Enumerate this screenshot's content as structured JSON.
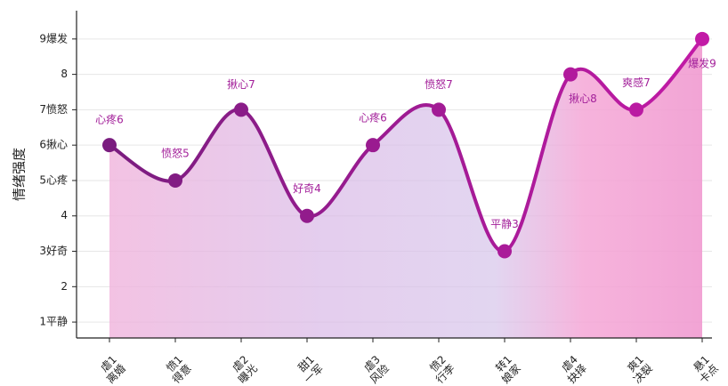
{
  "chart_data": {
    "type": "line",
    "y_label": "情绪强度",
    "categories": [
      "虐1\n离婚",
      "愤1\n得意",
      "虐2\n曝光",
      "甜1\n一军",
      "虐3\n风险",
      "愤2\n行李",
      "转1\n娘家",
      "虐4\n抉择",
      "爽1\n决裂",
      "悬1\n卡点"
    ],
    "values": [
      6,
      5,
      7,
      4,
      6,
      7,
      3,
      8,
      7,
      9
    ],
    "value_labels": [
      "心疼6",
      "愤怒5",
      "揪心7",
      "好奇4",
      "心疼6",
      "愤怒7",
      "平静3",
      "揪心8",
      "爽感7",
      "爆发9"
    ],
    "color": "#8b1a8b",
    "ylim": [
      0.55,
      9.8
    ],
    "yticks": [
      {
        "value": 1,
        "label": "1平静"
      },
      2,
      {
        "value": 3,
        "label": "3好奇"
      },
      4,
      {
        "value": 5,
        "label": "5心疼"
      },
      {
        "value": 6,
        "label": "6揪心"
      },
      {
        "value": 7,
        "label": "7愤怒"
      },
      8,
      {
        "value": 9,
        "label": "9爆发"
      }
    ],
    "grid": true
  }
}
